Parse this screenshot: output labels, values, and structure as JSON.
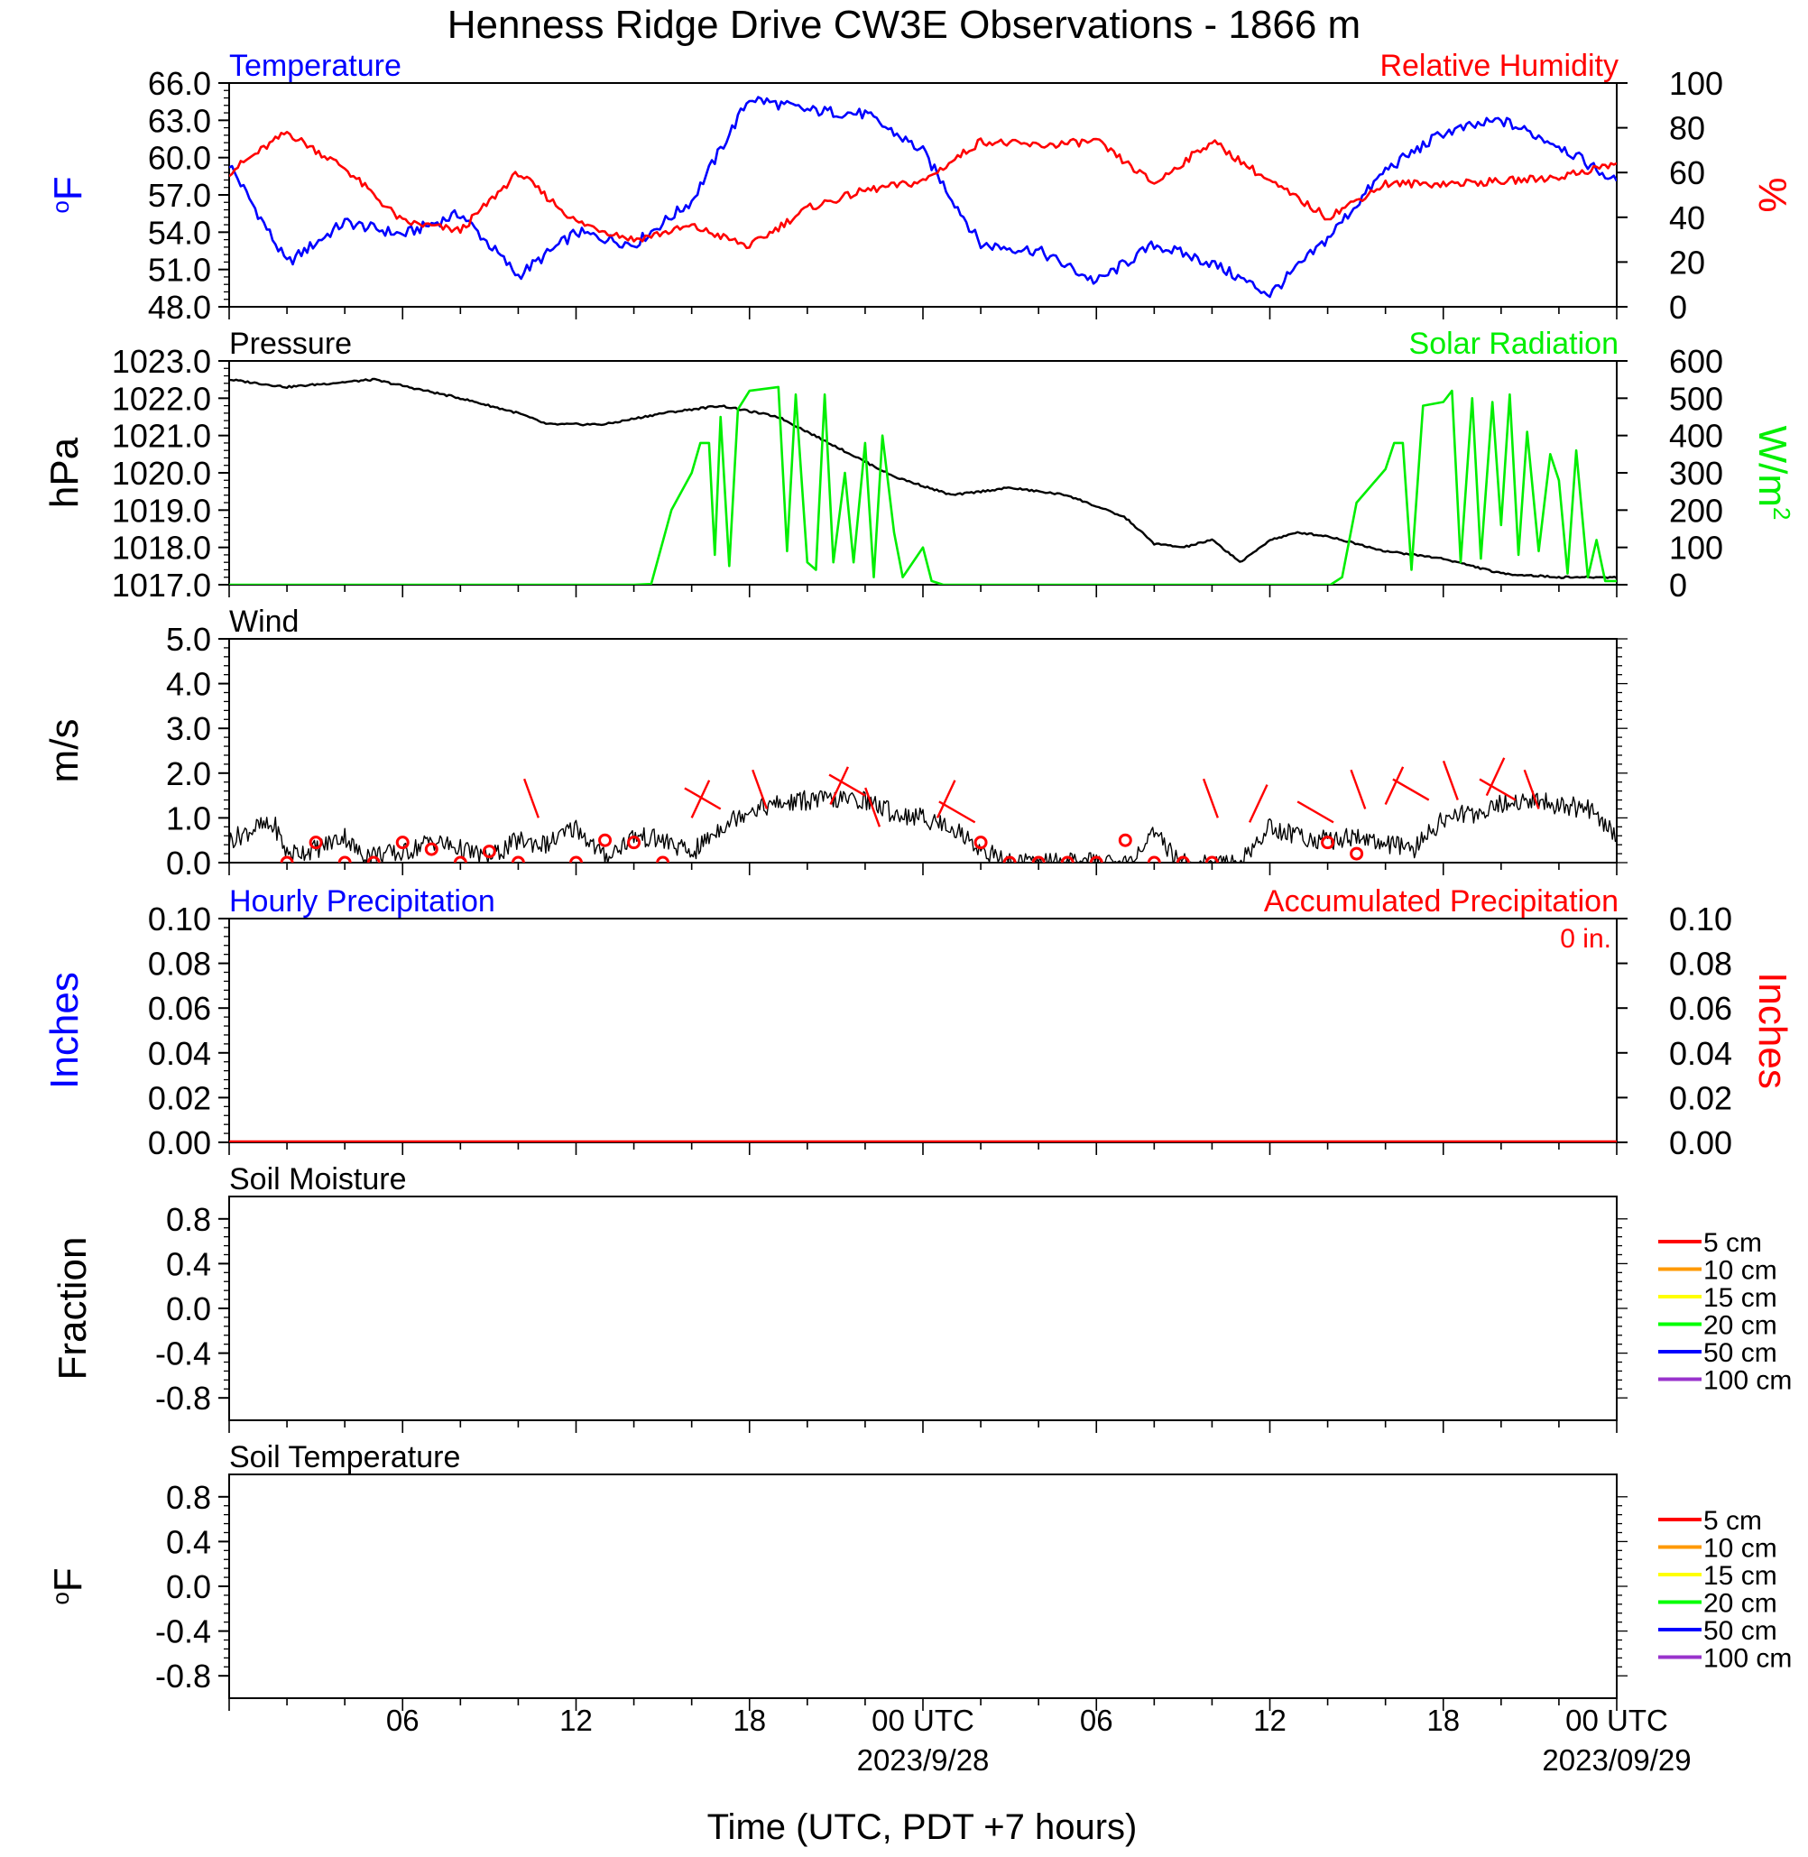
{
  "page_title": "Henness Ridge Drive CW3E Observations - 1866 m",
  "xaxis": {
    "ticks": [
      "06",
      "12",
      "18",
      "00 UTC",
      "06",
      "12",
      "18",
      "00 UTC"
    ],
    "dates": [
      "2023/9/28",
      "2023/09/29"
    ],
    "title": "Time (UTC, PDT +7 hours)"
  },
  "legend_soil": [
    "5 cm",
    "10 cm",
    "15 cm",
    "20 cm",
    "50 cm",
    "100 cm"
  ],
  "colors": {
    "temperature": "#0000ff",
    "humidity": "#ff0000",
    "pressure": "#000000",
    "solar": "#00ee00",
    "wind": "#000000",
    "barb": "#ff0000",
    "legend": [
      "#ff0000",
      "#ff9900",
      "#ffff00",
      "#00ff00",
      "#0000ff",
      "#9933cc"
    ]
  },
  "chart_data": [
    {
      "type": "line",
      "title_left": "Temperature",
      "title_right": "Relative Humidity",
      "ylabel": "°F",
      "ylabel_right": "%",
      "ylim": [
        48,
        66
      ],
      "ylim_right": [
        0,
        100
      ],
      "yticks": [
        "48.0",
        "51.0",
        "54.0",
        "57.0",
        "60.0",
        "63.0",
        "66.0"
      ],
      "yticks_right": [
        "0",
        "20",
        "40",
        "60",
        "80",
        "100"
      ],
      "x_hours": [
        0,
        2,
        4,
        6,
        8,
        10,
        12,
        14,
        16,
        18,
        20,
        22,
        24,
        26,
        28,
        30,
        32,
        34,
        36,
        38,
        40,
        42,
        44,
        46,
        48
      ],
      "series": [
        {
          "name": "Temperature",
          "values": [
            59.5,
            51.5,
            54.8,
            53.8,
            55.5,
            50.5,
            54.0,
            53.0,
            56.5,
            64.8,
            63.8,
            63.5,
            60.5,
            53.0,
            52.5,
            50.0,
            53.0,
            51.5,
            49.0,
            53.5,
            59.0,
            62.0,
            63.0,
            61.0,
            58.0
          ]
        },
        {
          "name": "Relative Humidity",
          "values": [
            60,
            78,
            62,
            38,
            34,
            60,
            38,
            30,
            36,
            27,
            44,
            52,
            56,
            74,
            72,
            74,
            55,
            74,
            56,
            40,
            55,
            55,
            56,
            58,
            64
          ]
        }
      ]
    },
    {
      "type": "line",
      "title_left": "Pressure",
      "title_right": "Solar Radiation",
      "ylabel": "hPa",
      "ylabel_right": "W/m²",
      "ylim": [
        1017,
        1023
      ],
      "ylim_right": [
        0,
        600
      ],
      "yticks": [
        "1017.0",
        "1018.0",
        "1019.0",
        "1020.0",
        "1021.0",
        "1022.0",
        "1023.0"
      ],
      "yticks_right": [
        "0",
        "100",
        "200",
        "300",
        "400",
        "500",
        "600"
      ],
      "series": [
        {
          "name": "Pressure",
          "x_hours": [
            0,
            2,
            5,
            8,
            10,
            11,
            13,
            15,
            17,
            19,
            21,
            23,
            25,
            27,
            29,
            31,
            32,
            33,
            34,
            35,
            36,
            37,
            38,
            40,
            42,
            44,
            45,
            46,
            48
          ],
          "values": [
            1022.5,
            1022.3,
            1022.5,
            1022.0,
            1021.6,
            1021.3,
            1021.3,
            1021.6,
            1021.8,
            1021.5,
            1020.7,
            1019.9,
            1019.4,
            1019.6,
            1019.4,
            1018.8,
            1018.1,
            1018.0,
            1018.2,
            1017.6,
            1018.2,
            1018.4,
            1018.3,
            1017.9,
            1017.7,
            1017.3,
            1017.25,
            1017.2,
            1017.2
          ]
        },
        {
          "name": "Solar Radiation",
          "x_hours": [
            0,
            14,
            14.6,
            15.3,
            16,
            16.3,
            16.6,
            16.8,
            17.0,
            17.3,
            17.6,
            18.0,
            19.0,
            19.3,
            19.6,
            20.0,
            20.3,
            20.6,
            20.9,
            21.3,
            21.6,
            22.0,
            22.3,
            22.6,
            23.0,
            23.3,
            24.0,
            24.3,
            24.7,
            38.1,
            38.5,
            39.0,
            40.0,
            40.3,
            40.6,
            40.9,
            41.3,
            42.0,
            42.3,
            42.6,
            43.0,
            43.3,
            43.7,
            44.0,
            44.3,
            44.6,
            44.9,
            45.3,
            45.7,
            46.0,
            46.3,
            46.6,
            47.0,
            47.3,
            47.6,
            48.0
          ],
          "values": [
            0,
            0,
            2,
            200,
            300,
            380,
            380,
            80,
            450,
            50,
            470,
            520,
            530,
            90,
            510,
            60,
            40,
            510,
            60,
            300,
            60,
            380,
            20,
            400,
            140,
            20,
            100,
            10,
            0,
            0,
            20,
            220,
            310,
            380,
            380,
            40,
            480,
            490,
            520,
            60,
            500,
            70,
            490,
            160,
            510,
            80,
            410,
            90,
            350,
            280,
            30,
            360,
            20,
            120,
            10,
            10
          ]
        }
      ]
    },
    {
      "type": "line",
      "title_left": "Wind",
      "ylabel": "m/s",
      "ylim": [
        0,
        5
      ],
      "yticks": [
        "0.0",
        "1.0",
        "2.0",
        "3.0",
        "4.0",
        "5.0"
      ],
      "x_hours": [
        0,
        1,
        1.6,
        2,
        3,
        4,
        4.5,
        5,
        6,
        7,
        8,
        9,
        10,
        11,
        12,
        13,
        14,
        15,
        16,
        17,
        18,
        19,
        20,
        21,
        22,
        23,
        24,
        25,
        26,
        27,
        28,
        29,
        30,
        31,
        32,
        33,
        34,
        35,
        36,
        37,
        38,
        39,
        40,
        41,
        42,
        43,
        44,
        45,
        46,
        47,
        48
      ],
      "series": [
        {
          "name": "Wind speed",
          "values": [
            0.5,
            0.8,
            0.8,
            0.2,
            0.3,
            0.6,
            0.2,
            0.2,
            0.2,
            0.5,
            0.3,
            0.1,
            0.5,
            0.4,
            0.8,
            0.1,
            0.6,
            0.5,
            0.2,
            0.8,
            1.2,
            1.3,
            1.4,
            1.4,
            1.4,
            1.1,
            1.0,
            0.8,
            0.3,
            0.0,
            0.0,
            0.0,
            0.0,
            0.0,
            0.6,
            0.0,
            0.0,
            0.0,
            0.8,
            0.6,
            0.5,
            0.6,
            0.4,
            0.3,
            1.0,
            1.1,
            1.3,
            1.4,
            1.3,
            1.2,
            0.6
          ]
        }
      ],
      "calm_circles_hours": [
        2,
        3,
        4,
        5,
        6,
        7,
        8,
        9,
        10,
        12,
        13,
        14,
        15,
        26,
        27,
        28,
        29,
        30,
        31,
        32,
        33,
        34,
        38,
        39
      ],
      "calm_circles_values": [
        0.0,
        0.45,
        0.0,
        0.0,
        0.45,
        0.3,
        0.0,
        0.25,
        0.0,
        0.0,
        0.5,
        0.45,
        0.0,
        0.45,
        0.0,
        0.0,
        0.0,
        0.0,
        0.5,
        0.0,
        0.0,
        0.0,
        0.45,
        0.2
      ],
      "barbs_hours": [
        10.7,
        16,
        17,
        18.6,
        20.8,
        22,
        22.5,
        24.5,
        25.8,
        34.2,
        35.3,
        38.2,
        39.3,
        40,
        41.5,
        42.5,
        43.5,
        44.5,
        45.3
      ],
      "barbs_values": [
        1.0,
        1.0,
        1.2,
        1.2,
        1.3,
        1.5,
        0.8,
        1.0,
        0.9,
        1.0,
        0.9,
        0.9,
        1.2,
        1.3,
        1.4,
        1.4,
        1.5,
        1.4,
        1.2
      ]
    },
    {
      "type": "line",
      "title_left": "Hourly Precipitation",
      "title_right": "Accumulated Precipitation",
      "annotation": "0 in.",
      "ylabel": "Inches",
      "ylabel_right": "Inches",
      "ylim": [
        0,
        0.1
      ],
      "ylim_right": [
        0,
        0.1
      ],
      "yticks": [
        "0.00",
        "0.02",
        "0.04",
        "0.06",
        "0.08",
        "0.10"
      ],
      "yticks_right": [
        "0.00",
        "0.02",
        "0.04",
        "0.06",
        "0.08",
        "0.10"
      ],
      "x_hours": [
        0,
        48
      ],
      "series": [
        {
          "name": "Hourly Precipitation",
          "values": [
            0,
            0
          ]
        },
        {
          "name": "Accumulated Precipitation",
          "values": [
            0,
            0
          ]
        }
      ]
    },
    {
      "type": "line",
      "title_left": "Soil Moisture",
      "ylabel": "Fraction",
      "ylim": [
        -1,
        1
      ],
      "yticks": [
        "-0.8",
        "-0.4",
        "0.0",
        "0.4",
        "0.8"
      ],
      "series": []
    },
    {
      "type": "line",
      "title_left": "Soil Temperature",
      "ylabel": "°F",
      "ylim": [
        -1,
        1
      ],
      "yticks": [
        "-0.8",
        "-0.4",
        "0.0",
        "0.4",
        "0.8"
      ],
      "series": []
    }
  ]
}
